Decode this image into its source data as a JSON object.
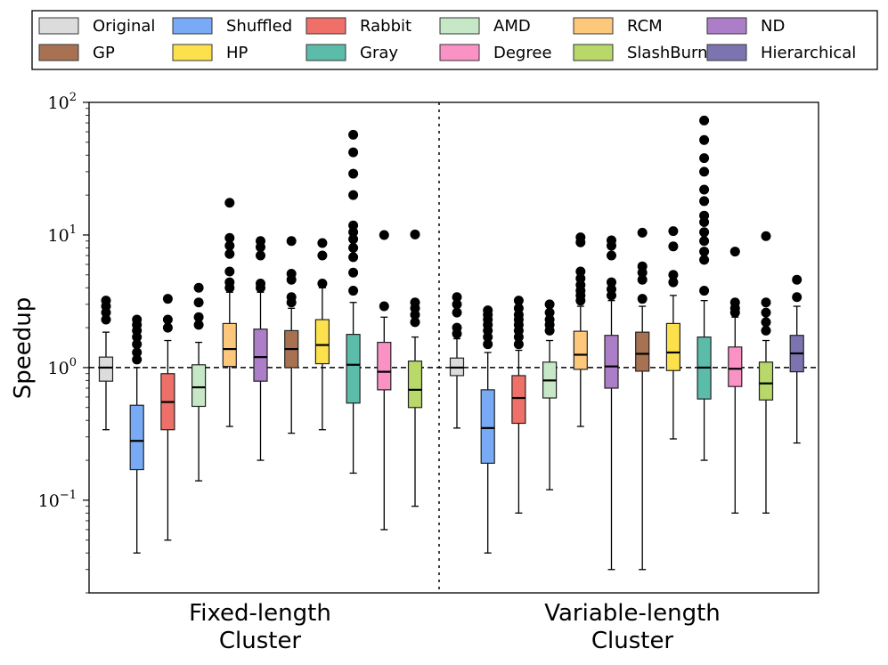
{
  "chart_data": {
    "type": "boxplot",
    "ylabel": "Speedup",
    "yscale": "log",
    "ylim": [
      0.02,
      100
    ],
    "y_ticks": [
      {
        "value": 0.1,
        "base": "10",
        "exp": "−1"
      },
      {
        "value": 1,
        "base": "10",
        "exp": "0"
      },
      {
        "value": 10,
        "base": "10",
        "exp": "1"
      },
      {
        "value": 100,
        "base": "10",
        "exp": "2"
      }
    ],
    "reference_line": 1.0,
    "groups": [
      {
        "line1": "Fixed-length",
        "line2": "Cluster"
      },
      {
        "line1": "Variable-length",
        "line2": "Cluster"
      }
    ],
    "legend": [
      {
        "name": "Original",
        "color": "#dcdcdc"
      },
      {
        "name": "Shuffled",
        "color": "#78aaf5"
      },
      {
        "name": "Rabbit",
        "color": "#ee7068"
      },
      {
        "name": "AMD",
        "color": "#c6e8c6"
      },
      {
        "name": "RCM",
        "color": "#fdc77c"
      },
      {
        "name": "ND",
        "color": "#ad7ec8"
      },
      {
        "name": "GP",
        "color": "#a87252"
      },
      {
        "name": "HP",
        "color": "#fde14c"
      },
      {
        "name": "Gray",
        "color": "#5cbcaa"
      },
      {
        "name": "Degree",
        "color": "#fa92c6"
      },
      {
        "name": "SlashBurn",
        "color": "#b8d86a"
      },
      {
        "name": "Hierarchical",
        "color": "#7c74b0"
      }
    ],
    "series": [
      {
        "group": 0,
        "name": "Original",
        "whisker_low": 0.34,
        "q1": 0.79,
        "median": 1.0,
        "q3": 1.2,
        "whisker_high": 1.85,
        "outliers": [
          2.3,
          2.6,
          2.9,
          3.2
        ]
      },
      {
        "group": 0,
        "name": "Shuffled",
        "whisker_low": 0.04,
        "q1": 0.17,
        "median": 0.28,
        "q3": 0.52,
        "whisker_high": 1.0,
        "outliers": [
          1.15,
          1.3,
          1.5,
          1.7,
          1.9,
          2.1,
          2.3
        ]
      },
      {
        "group": 0,
        "name": "Rabbit",
        "whisker_low": 0.05,
        "q1": 0.34,
        "median": 0.55,
        "q3": 0.9,
        "whisker_high": 1.6,
        "outliers": [
          2.0,
          2.3,
          3.3
        ]
      },
      {
        "group": 0,
        "name": "AMD",
        "whisker_low": 0.14,
        "q1": 0.51,
        "median": 0.71,
        "q3": 1.05,
        "whisker_high": 1.55,
        "outliers": [
          2.1,
          2.4,
          3.1,
          4.0
        ]
      },
      {
        "group": 0,
        "name": "RCM",
        "whisker_low": 0.36,
        "q1": 1.02,
        "median": 1.38,
        "q3": 2.15,
        "whisker_high": 3.7,
        "outliers": [
          4.0,
          4.4,
          5.3,
          7.2,
          8.3,
          9.5,
          17.5
        ]
      },
      {
        "group": 0,
        "name": "ND",
        "whisker_low": 0.2,
        "q1": 0.79,
        "median": 1.2,
        "q3": 1.95,
        "whisker_high": 3.7,
        "outliers": [
          4.0,
          4.3,
          7.0,
          8.1,
          9.0
        ]
      },
      {
        "group": 0,
        "name": "GP",
        "whisker_low": 0.32,
        "q1": 1.0,
        "median": 1.38,
        "q3": 1.9,
        "whisker_high": 2.8,
        "outliers": [
          3.1,
          3.4,
          4.6,
          5.1,
          9.0
        ]
      },
      {
        "group": 0,
        "name": "HP",
        "whisker_low": 0.34,
        "q1": 1.07,
        "median": 1.48,
        "q3": 2.3,
        "whisker_high": 4.0,
        "outliers": [
          4.3,
          7.0,
          8.7
        ]
      },
      {
        "group": 0,
        "name": "Gray",
        "whisker_low": 0.16,
        "q1": 0.54,
        "median": 1.05,
        "q3": 1.78,
        "whisker_high": 3.1,
        "outliers": [
          3.8,
          5.2,
          6.8,
          8.0,
          9.3,
          10.5,
          11.8,
          20.0,
          29.0,
          42.0,
          57.0
        ]
      },
      {
        "group": 0,
        "name": "Degree",
        "whisker_low": 0.06,
        "q1": 0.68,
        "median": 0.93,
        "q3": 1.55,
        "whisker_high": 2.4,
        "outliers": [
          2.9,
          10.0
        ]
      },
      {
        "group": 0,
        "name": "SlashBurn",
        "whisker_low": 0.09,
        "q1": 0.5,
        "median": 0.68,
        "q3": 1.12,
        "whisker_high": 1.7,
        "outliers": [
          2.2,
          2.5,
          2.8,
          3.1,
          10.1
        ]
      },
      {
        "group": 1,
        "name": "Original",
        "whisker_low": 0.35,
        "q1": 0.87,
        "median": 1.0,
        "q3": 1.18,
        "whisker_high": 1.65,
        "outliers": [
          1.8,
          2.0,
          2.6,
          3.0,
          3.4
        ]
      },
      {
        "group": 1,
        "name": "Shuffled",
        "whisker_low": 0.04,
        "q1": 0.19,
        "median": 0.35,
        "q3": 0.68,
        "whisker_high": 1.3,
        "outliers": [
          1.5,
          1.7,
          1.9,
          2.1,
          2.3,
          2.5,
          2.7
        ]
      },
      {
        "group": 1,
        "name": "Rabbit",
        "whisker_low": 0.08,
        "q1": 0.38,
        "median": 0.59,
        "q3": 0.87,
        "whisker_high": 1.35,
        "outliers": [
          1.5,
          1.7,
          1.9,
          2.1,
          2.3,
          2.5,
          2.8,
          3.2
        ]
      },
      {
        "group": 1,
        "name": "AMD",
        "whisker_low": 0.12,
        "q1": 0.59,
        "median": 0.8,
        "q3": 1.1,
        "whisker_high": 1.6,
        "outliers": [
          1.9,
          2.1,
          2.3,
          2.6,
          3.0
        ]
      },
      {
        "group": 1,
        "name": "RCM",
        "whisker_low": 0.36,
        "q1": 0.97,
        "median": 1.25,
        "q3": 1.88,
        "whisker_high": 2.9,
        "outliers": [
          3.2,
          3.5,
          3.8,
          4.2,
          4.7,
          5.3,
          8.8,
          9.6
        ]
      },
      {
        "group": 1,
        "name": "ND",
        "whisker_low": 0.03,
        "q1": 0.7,
        "median": 1.02,
        "q3": 1.75,
        "whisker_high": 3.2,
        "outliers": [
          3.5,
          3.9,
          4.4,
          7.0,
          8.3,
          9.1
        ]
      },
      {
        "group": 1,
        "name": "GP",
        "whisker_low": 0.03,
        "q1": 0.94,
        "median": 1.27,
        "q3": 1.85,
        "whisker_high": 2.9,
        "outliers": [
          3.3,
          4.6,
          5.2,
          5.8,
          10.4
        ]
      },
      {
        "group": 1,
        "name": "HP",
        "whisker_low": 0.29,
        "q1": 0.95,
        "median": 1.3,
        "q3": 2.15,
        "whisker_high": 3.5,
        "outliers": [
          4.4,
          5.0,
          8.2,
          10.7
        ]
      },
      {
        "group": 1,
        "name": "Gray",
        "whisker_low": 0.2,
        "q1": 0.58,
        "median": 1.0,
        "q3": 1.7,
        "whisker_high": 3.2,
        "outliers": [
          3.8,
          6.5,
          7.5,
          9.0,
          10.5,
          12.5,
          14.0,
          18.0,
          22.0,
          30.0,
          38.0,
          52.0,
          73.0
        ]
      },
      {
        "group": 1,
        "name": "Degree",
        "whisker_low": 0.08,
        "q1": 0.72,
        "median": 0.98,
        "q3": 1.43,
        "whisker_high": 2.4,
        "outliers": [
          2.6,
          2.8,
          3.1,
          7.5
        ]
      },
      {
        "group": 1,
        "name": "SlashBurn",
        "whisker_low": 0.08,
        "q1": 0.57,
        "median": 0.76,
        "q3": 1.1,
        "whisker_high": 1.6,
        "outliers": [
          1.9,
          2.2,
          2.6,
          3.1,
          9.8
        ]
      },
      {
        "group": 1,
        "name": "Hierarchical",
        "whisker_low": 0.27,
        "q1": 0.93,
        "median": 1.28,
        "q3": 1.75,
        "whisker_high": 2.9,
        "outliers": [
          3.4,
          4.6
        ]
      }
    ]
  }
}
